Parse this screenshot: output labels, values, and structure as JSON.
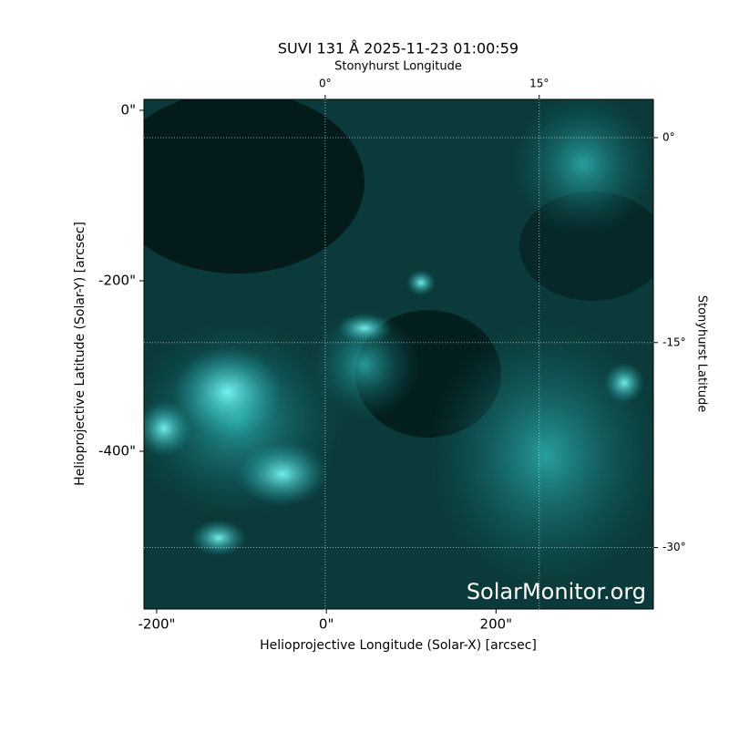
{
  "chart_data": {
    "type": "image",
    "title": "SUVI 131 Å 2025-11-23 01:00:59",
    "x_label": "Helioprojective Longitude (Solar-X) [arcsec]",
    "y_label": "Helioprojective Latitude (Solar-Y) [arcsec]",
    "x2_label": "Stonyhurst Longitude",
    "y2_label": "Stonyhurst Latitude",
    "watermark": "SolarMonitor.org",
    "xlim": [
      -215,
      385.5
    ],
    "ylim": [
      -585,
      12.8
    ],
    "xticks": [
      {
        "value": -200,
        "label": "-200\""
      },
      {
        "value": 0,
        "label": "0\""
      },
      {
        "value": 200,
        "label": "200\""
      }
    ],
    "yticks": [
      {
        "value": 0,
        "label": "0\""
      },
      {
        "value": -200,
        "label": "-200\""
      },
      {
        "value": -400,
        "label": "-400\""
      }
    ],
    "x2lim": [
      -12.7,
      23
    ],
    "x2ticks": [
      {
        "value": 0,
        "label": "0°"
      },
      {
        "value": 15,
        "label": "15°"
      }
    ],
    "y2lim": [
      -34.5,
      2.8
    ],
    "y2ticks": [
      {
        "value": 0,
        "label": "0°"
      },
      {
        "value": -15,
        "label": "-15°"
      },
      {
        "value": -30,
        "label": "-30°"
      }
    ],
    "grid": true
  }
}
